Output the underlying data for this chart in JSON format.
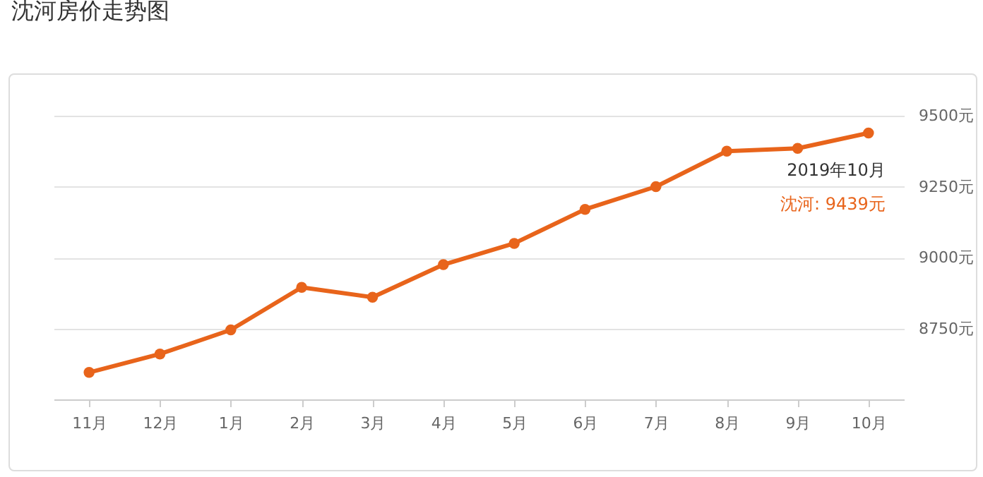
{
  "chart_data": {
    "type": "line",
    "title": "沈河房价走势图",
    "categories": [
      "11月",
      "12月",
      "1月",
      "2月",
      "3月",
      "4月",
      "5月",
      "6月",
      "7月",
      "8月",
      "9月",
      "10月"
    ],
    "series": [
      {
        "color": "#e8641b",
        "values": [
          8595,
          8660,
          8745,
          8895,
          8860,
          8975,
          9050,
          9170,
          9250,
          9375,
          9385,
          9439
        ]
      }
    ],
    "ylim": [
      8500,
      9500
    ],
    "yticks": [
      {
        "value": 8750,
        "label": "8750元"
      },
      {
        "value": 9000,
        "label": "9000元"
      },
      {
        "value": 9250,
        "label": "9250元"
      },
      {
        "value": 9500,
        "label": "9500元"
      }
    ],
    "grid": "y",
    "marker": "circle",
    "line_style": "solid",
    "annotations": [
      {
        "text": "2019年10月",
        "x": "10月",
        "y": 9439
      },
      "沈河:  9439元"
    ]
  }
}
